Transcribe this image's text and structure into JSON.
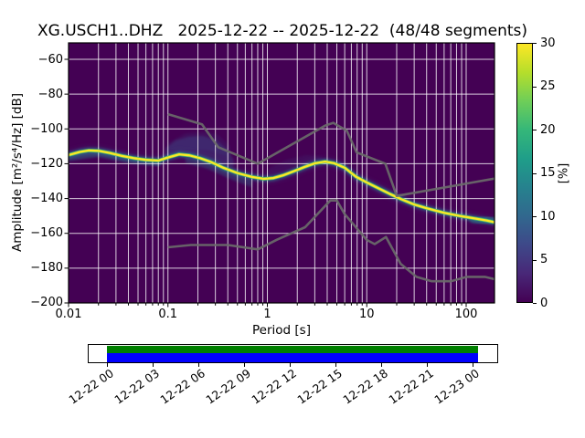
{
  "figure": {
    "title": "XG.USCH1..DHZ   2025-12-22 -- 2025-12-22  (48/48 segments)"
  },
  "chart_data": {
    "type": "heatmap",
    "title": "XG.USCH1..DHZ   2025-12-22 -- 2025-12-22  (48/48 segments)",
    "xlabel": "Period [s]",
    "ylabel": "Amplitude [m²/s⁴/Hz] [dB]",
    "x_scale": "log",
    "xlim": [
      0.01,
      200
    ],
    "ylim": [
      -200,
      -50
    ],
    "grid": true,
    "x_ticks": [
      {
        "value": 0.01,
        "label": "0.01"
      },
      {
        "value": 0.1,
        "label": "0.1"
      },
      {
        "value": 1,
        "label": "1"
      },
      {
        "value": 10,
        "label": "10"
      },
      {
        "value": 100,
        "label": "100"
      }
    ],
    "y_ticks": [
      {
        "value": -60,
        "label": "−60"
      },
      {
        "value": -80,
        "label": "−80"
      },
      {
        "value": -100,
        "label": "−100"
      },
      {
        "value": -120,
        "label": "−120"
      },
      {
        "value": -140,
        "label": "−140"
      },
      {
        "value": -160,
        "label": "−160"
      },
      {
        "value": -180,
        "label": "−180"
      },
      {
        "value": -200,
        "label": "−200"
      }
    ],
    "colors": {
      "background": "#440154",
      "grid": "#ffffff",
      "grid_opacity": 0.8,
      "noise_model": "#6a6a6a",
      "ridge_core": "#fde725",
      "ridge_green": "#4ec36b",
      "ridge_teal": "#2a788e",
      "ridge_blue": "#3b528b",
      "ridge_outer": "#453781"
    },
    "colorbar": {
      "label": "[%]",
      "min": 0,
      "max": 30,
      "ticks": [
        0,
        5,
        10,
        15,
        20,
        25,
        30
      ],
      "colormap": "viridis",
      "gradient_stops": [
        "#440154",
        "#482878",
        "#3e4989",
        "#31688e",
        "#26828e",
        "#1f9e89",
        "#35b779",
        "#6ece58",
        "#b5de2b",
        "#fde725"
      ]
    },
    "psd_mode_curve": {
      "name": "ppsd-probability-ridge",
      "points": [
        [
          0.01,
          -115.0
        ],
        [
          0.013,
          -113.2
        ],
        [
          0.016,
          -112.4
        ],
        [
          0.02,
          -112.6
        ],
        [
          0.026,
          -113.8
        ],
        [
          0.034,
          -115.4
        ],
        [
          0.045,
          -116.8
        ],
        [
          0.06,
          -117.8
        ],
        [
          0.08,
          -118.2
        ],
        [
          0.1,
          -116.4
        ],
        [
          0.13,
          -114.6
        ],
        [
          0.165,
          -115.2
        ],
        [
          0.21,
          -116.8
        ],
        [
          0.27,
          -119.0
        ],
        [
          0.36,
          -122.3
        ],
        [
          0.5,
          -125.4
        ],
        [
          0.7,
          -127.6
        ],
        [
          0.92,
          -128.7
        ],
        [
          1.15,
          -128.2
        ],
        [
          1.45,
          -126.6
        ],
        [
          1.85,
          -124.3
        ],
        [
          2.35,
          -121.9
        ],
        [
          3.0,
          -119.8
        ],
        [
          3.8,
          -118.8
        ],
        [
          4.7,
          -119.7
        ],
        [
          6.0,
          -122.3
        ],
        [
          7.8,
          -127.5
        ],
        [
          10.0,
          -130.8
        ],
        [
          13.0,
          -134.0
        ],
        [
          17.0,
          -137.3
        ],
        [
          22.0,
          -140.3
        ],
        [
          30.0,
          -143.4
        ],
        [
          42.0,
          -145.9
        ],
        [
          60.0,
          -148.2
        ],
        [
          85.0,
          -149.9
        ],
        [
          120.0,
          -151.4
        ],
        [
          160.0,
          -152.6
        ],
        [
          200.0,
          -153.8
        ]
      ]
    },
    "noise_models": [
      {
        "name": "NHNM",
        "points": [
          [
            0.1,
            -91.5
          ],
          [
            0.22,
            -97.4
          ],
          [
            0.32,
            -110.5
          ],
          [
            0.8,
            -120.0
          ],
          [
            3.8,
            -98.1
          ],
          [
            4.6,
            -96.5
          ],
          [
            6.3,
            -101.0
          ],
          [
            7.9,
            -113.5
          ],
          [
            15.4,
            -120.0
          ],
          [
            20.0,
            -138.5
          ],
          [
            200.0,
            -128.4
          ]
        ]
      },
      {
        "name": "NLNM",
        "points": [
          [
            0.1,
            -168.0
          ],
          [
            0.17,
            -166.7
          ],
          [
            0.4,
            -166.7
          ],
          [
            0.8,
            -169.2
          ],
          [
            1.24,
            -163.7
          ],
          [
            2.4,
            -156.5
          ],
          [
            4.3,
            -141.1
          ],
          [
            5.0,
            -141.1
          ],
          [
            6.0,
            -149.0
          ],
          [
            10.0,
            -163.8
          ],
          [
            12.0,
            -166.2
          ],
          [
            15.6,
            -162.1
          ],
          [
            21.9,
            -177.5
          ],
          [
            31.6,
            -185.0
          ],
          [
            45.0,
            -187.5
          ],
          [
            70.0,
            -187.5
          ],
          [
            101.0,
            -185.0
          ],
          [
            154.0,
            -185.0
          ],
          [
            200.0,
            -186.5
          ]
        ]
      }
    ],
    "spread_polygons": [
      {
        "name": "spread-above-main",
        "fill": "#3b528b",
        "opacity": 0.38,
        "points": [
          [
            0.095,
            -111
          ],
          [
            0.12,
            -106.5
          ],
          [
            0.16,
            -104.5
          ],
          [
            0.22,
            -104
          ],
          [
            0.3,
            -106
          ],
          [
            0.4,
            -112
          ],
          [
            0.46,
            -118
          ],
          [
            0.46,
            -122
          ],
          [
            0.3,
            -119.5
          ],
          [
            0.22,
            -117
          ],
          [
            0.16,
            -115.5
          ],
          [
            0.12,
            -115
          ],
          [
            0.095,
            -117
          ]
        ]
      },
      {
        "name": "spread-above-faint",
        "fill": "#3b528b",
        "opacity": 0.15,
        "points": [
          [
            0.1,
            -108
          ],
          [
            0.15,
            -102.5
          ],
          [
            0.25,
            -101.5
          ],
          [
            0.33,
            -104
          ],
          [
            0.42,
            -110
          ],
          [
            0.42,
            -116
          ],
          [
            0.25,
            -112
          ],
          [
            0.1,
            -112
          ]
        ]
      },
      {
        "name": "spread-midband-faint",
        "fill": "#3b528b",
        "opacity": 0.15,
        "points": [
          [
            1.0,
            -123
          ],
          [
            1.6,
            -117.5
          ],
          [
            2.5,
            -115
          ],
          [
            3.5,
            -115.8
          ],
          [
            3.5,
            -119
          ],
          [
            2.0,
            -121
          ],
          [
            1.0,
            -127
          ]
        ]
      },
      {
        "name": "spread-below-band",
        "fill": "#2a788e",
        "opacity": 0.32,
        "points": [
          [
            0.15,
            -116
          ],
          [
            0.3,
            -120
          ],
          [
            0.5,
            -126
          ],
          [
            0.7,
            -129.5
          ],
          [
            0.7,
            -133.5
          ],
          [
            0.45,
            -129.5
          ],
          [
            0.25,
            -123
          ],
          [
            0.15,
            -119.5
          ]
        ]
      }
    ],
    "widen_segments": [
      {
        "name": "left-edge-tail",
        "color": "#2a788e",
        "opacity": 0.45,
        "width": 7,
        "points": [
          [
            0.01,
            -116.5
          ],
          [
            0.02,
            -114.2
          ],
          [
            0.04,
            -117.6
          ],
          [
            0.08,
            -119.8
          ]
        ]
      },
      {
        "name": "right-edge-tail",
        "color": "#26828e",
        "opacity": 0.5,
        "width": 11,
        "points": [
          [
            120,
            -151.4
          ],
          [
            160,
            -152.6
          ],
          [
            200,
            -153.8
          ]
        ]
      }
    ]
  },
  "timeline": {
    "bars": [
      {
        "name": "processed-segments-bar",
        "color": "#008000"
      },
      {
        "name": "data-availability-bar",
        "color": "#0000ff"
      }
    ],
    "tick_labels": [
      "12-22 00",
      "12-22 03",
      "12-22 06",
      "12-22 09",
      "12-22 12",
      "12-22 15",
      "12-22 18",
      "12-22 21",
      "12-23 00"
    ]
  }
}
